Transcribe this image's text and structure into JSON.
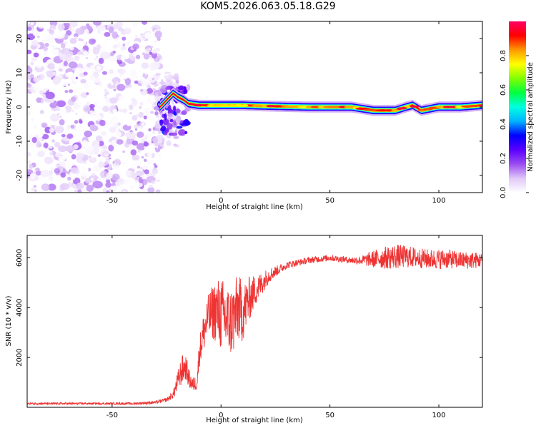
{
  "title": "KOM5.2026.063.05.18.G29",
  "chart_data": [
    {
      "type": "heatmap",
      "xlabel": "Height of straight line (km)",
      "ylabel": "Frequency (Hz)",
      "xlim": [
        -89,
        120
      ],
      "ylim": [
        -25,
        25
      ],
      "xticks": [
        -50,
        0,
        50,
        100
      ],
      "xtick_labels": [
        "-50",
        "0",
        "50",
        "100"
      ],
      "yticks": [
        -20,
        -10,
        0,
        10,
        20
      ],
      "ytick_labels": [
        "-20",
        "-10",
        "0",
        "10",
        "20"
      ],
      "colorbar": {
        "label": "Normalized spectral amplitude",
        "range": [
          0,
          1
        ],
        "ticks": [
          0.0,
          0.2,
          0.4,
          0.6,
          0.8
        ],
        "tick_labels": [
          "0.0",
          "0.2",
          "0.4",
          "0.6",
          "0.8"
        ],
        "colormap": [
          "#ffffff",
          "#e0c8f8",
          "#9a4cf0",
          "#5a00ff",
          "#0000ff",
          "#00b4ff",
          "#00ffe0",
          "#00ff40",
          "#80ff00",
          "#ffff00",
          "#ff9900",
          "#ff0000",
          "#ff0066"
        ]
      },
      "noise_region": {
        "x": [
          -89,
          -28
        ],
        "freq": [
          -25,
          25
        ],
        "amplitude": "0.0-0.15"
      },
      "transition_region": {
        "x": [
          -28,
          -15
        ],
        "freq": [
          -8,
          6
        ]
      },
      "signal_band": {
        "x": [
          -15,
          120
        ],
        "freq_center": [
          [
            -28,
            0
          ],
          [
            -25,
            2
          ],
          [
            -22,
            4
          ],
          [
            -20,
            3
          ],
          [
            -17,
            2
          ],
          [
            -15,
            1
          ],
          [
            -10,
            0.5
          ],
          [
            0,
            0.5
          ],
          [
            10,
            0.5
          ],
          [
            20,
            0.3
          ],
          [
            40,
            0
          ],
          [
            60,
            0
          ],
          [
            70,
            -1
          ],
          [
            80,
            -1
          ],
          [
            85,
            0
          ],
          [
            88,
            0.5
          ],
          [
            92,
            -1
          ],
          [
            100,
            0
          ],
          [
            110,
            0
          ],
          [
            120,
            0.5
          ]
        ],
        "bandwidth_hz": 2,
        "peak_amplitude": 0.95
      }
    },
    {
      "type": "line",
      "xlabel": "Height of straight line (km)",
      "ylabel": "SNR (10 * v/v)",
      "xlim": [
        -89,
        120
      ],
      "ylim": [
        0,
        6900
      ],
      "xticks": [
        -50,
        0,
        50,
        100
      ],
      "xtick_labels": [
        "-50",
        "0",
        "50",
        "100"
      ],
      "yticks": [
        2000,
        4000,
        6000
      ],
      "ytick_labels": [
        "2000",
        "4000",
        "6000"
      ],
      "line_color": "#ee3333",
      "series": [
        {
          "x": [
            -89,
            -80,
            -70,
            -60,
            -50,
            -40,
            -30,
            -25,
            -22,
            -20,
            -18,
            -16,
            -15,
            -13,
            -11,
            -10,
            -8,
            -6,
            -4,
            -2,
            0,
            2,
            4,
            6,
            8,
            10,
            12,
            14,
            16,
            18,
            20,
            22,
            24,
            26,
            28,
            30,
            35,
            40,
            45,
            50,
            55,
            60,
            65,
            70,
            75,
            80,
            85,
            90,
            95,
            100,
            105,
            110,
            115,
            120
          ],
          "values": [
            150,
            150,
            150,
            150,
            150,
            150,
            200,
            300,
            500,
            1000,
            1500,
            1600,
            1200,
            900,
            1000,
            2200,
            3000,
            3600,
            3800,
            3900,
            3700,
            3600,
            3400,
            3600,
            4000,
            3800,
            4200,
            4500,
            4700,
            4900,
            5100,
            5300,
            5400,
            5500,
            5600,
            5700,
            5800,
            5900,
            5950,
            6000,
            5950,
            5900,
            5900,
            5950,
            6000,
            6050,
            6050,
            6000,
            5950,
            5950,
            5950,
            5900,
            5900,
            5900
          ],
          "noise": [
            40,
            40,
            40,
            40,
            40,
            50,
            60,
            80,
            150,
            400,
            600,
            500,
            400,
            300,
            300,
            600,
            800,
            900,
            1100,
            1300,
            1500,
            1500,
            1400,
            1500,
            1400,
            1200,
            1000,
            800,
            600,
            500,
            400,
            300,
            250,
            200,
            180,
            150,
            130,
            130,
            130,
            130,
            130,
            130,
            200,
            350,
            450,
            500,
            450,
            400,
            400,
            400,
            380,
            350,
            350,
            300
          ]
        }
      ]
    }
  ]
}
